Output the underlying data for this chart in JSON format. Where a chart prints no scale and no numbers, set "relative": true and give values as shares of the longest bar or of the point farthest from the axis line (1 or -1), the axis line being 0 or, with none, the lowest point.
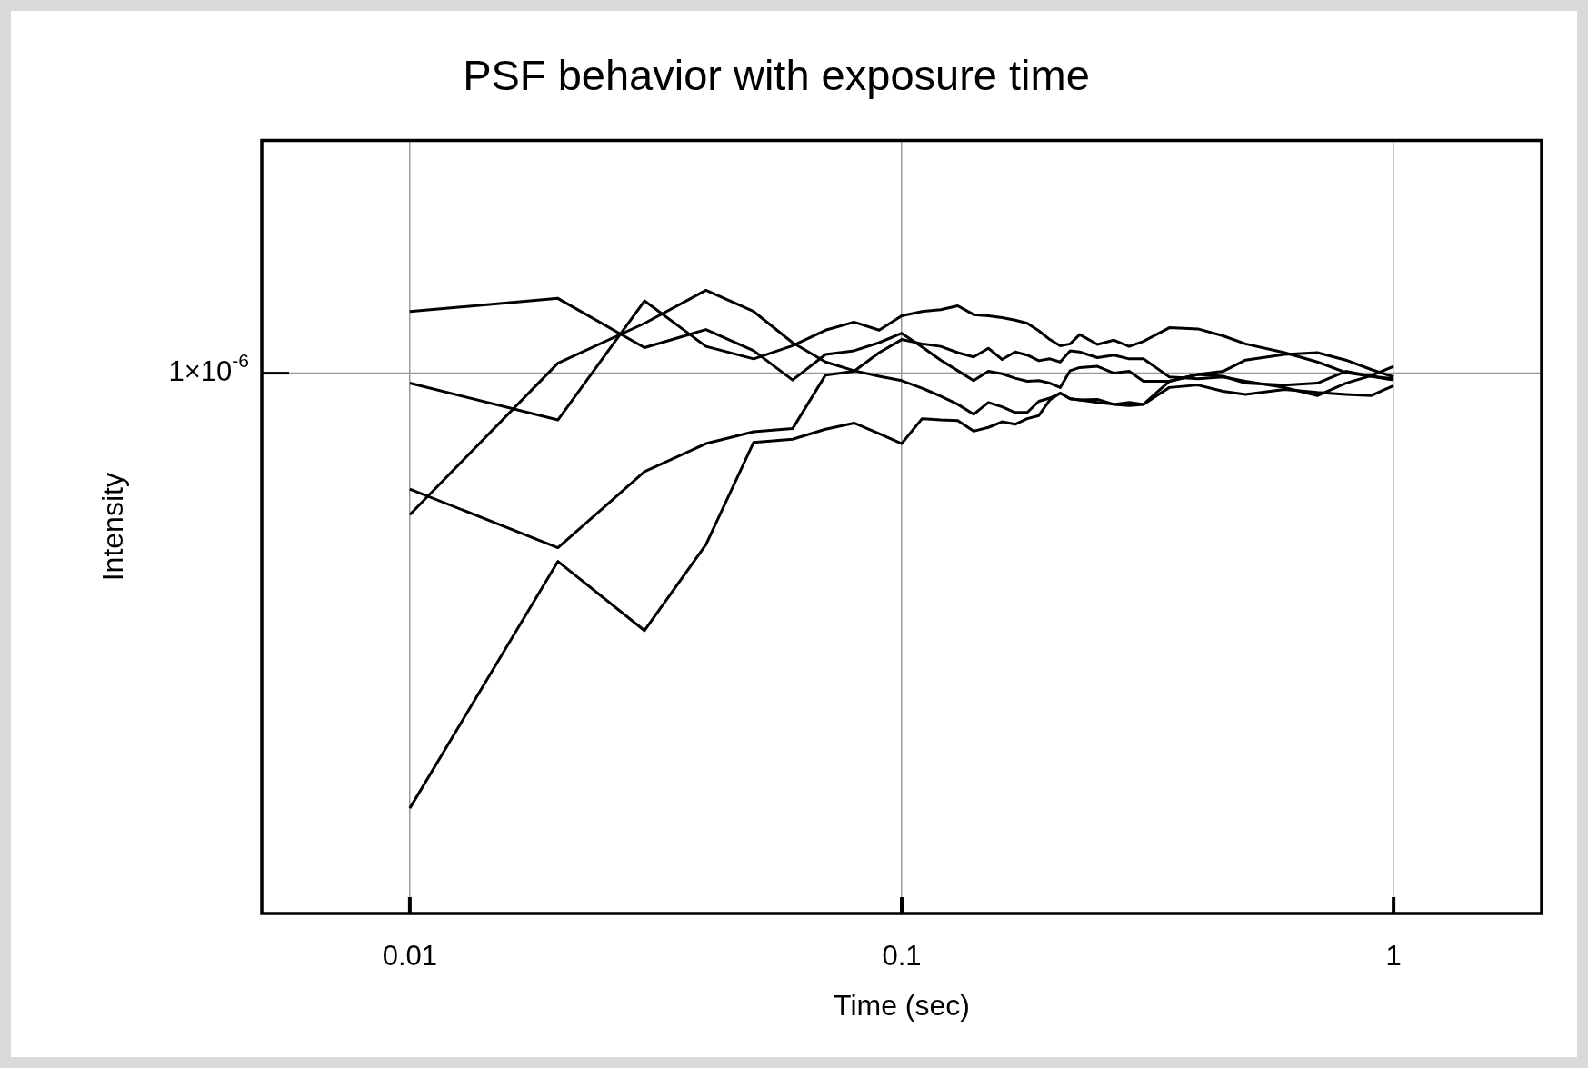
{
  "chart_data": {
    "type": "line",
    "title": "PSF behavior with exposure time",
    "xlabel": "Time (sec)",
    "ylabel": "Intensity",
    "log": "x",
    "grid": "x",
    "legend": false,
    "relative": true,
    "xlim": [
      0.005,
      2
    ],
    "xticks": [
      0.01,
      0.1,
      1
    ],
    "ref_lines": [
      {
        "axis": "y",
        "value": 0.867,
        "label": "1×10$^{-6}$",
        "color": "#999999"
      }
    ],
    "x": [
      0.01,
      0.02,
      0.03,
      0.04,
      0.05,
      0.06,
      0.07,
      0.08,
      0.09,
      0.1,
      0.11,
      0.12,
      0.13,
      0.14,
      0.15,
      0.16,
      0.17,
      0.18,
      0.19,
      0.2,
      0.21,
      0.22,
      0.23,
      0.25,
      0.27,
      0.29,
      0.31,
      0.35,
      0.4,
      0.45,
      0.5,
      0.6,
      0.7,
      0.8,
      0.9,
      1.0
    ],
    "series": [
      {
        "color": "#000000",
        "values": [
          0.966,
          0.987,
          0.908,
          0.937,
          0.903,
          0.856,
          0.897,
          0.903,
          0.916,
          0.931,
          0.909,
          0.888,
          0.871,
          0.855,
          0.87,
          0.866,
          0.859,
          0.854,
          0.855,
          0.851,
          0.844,
          0.871,
          0.876,
          0.878,
          0.867,
          0.87,
          0.854,
          0.854,
          0.865,
          0.862,
          0.851,
          0.848,
          0.851,
          0.87,
          0.862,
          0.856
        ]
      },
      {
        "color": "#000000",
        "values": [
          0.851,
          0.792,
          0.983,
          0.91,
          0.89,
          0.911,
          0.936,
          0.949,
          0.936,
          0.959,
          0.966,
          0.969,
          0.975,
          0.961,
          0.959,
          0.956,
          0.952,
          0.947,
          0.935,
          0.921,
          0.911,
          0.914,
          0.929,
          0.913,
          0.92,
          0.91,
          0.918,
          0.94,
          0.938,
          0.927,
          0.914,
          0.9,
          0.885,
          0.868,
          0.862,
          0.858
        ]
      },
      {
        "color": "#000000",
        "values": [
          0.64,
          0.883,
          0.947,
          1,
          0.966,
          0.916,
          0.885,
          0.871,
          0.862,
          0.855,
          0.843,
          0.83,
          0.817,
          0.801,
          0.82,
          0.813,
          0.804,
          0.804,
          0.822,
          0.827,
          0.835,
          0.826,
          0.824,
          0.825,
          0.817,
          0.815,
          0.817,
          0.844,
          0.848,
          0.838,
          0.833,
          0.841,
          0.836,
          0.833,
          0.831,
          0.847
        ]
      },
      {
        "color": "#000000",
        "values": [
          0.681,
          0.587,
          0.709,
          0.754,
          0.773,
          0.778,
          0.864,
          0.87,
          0.9,
          0.921,
          0.914,
          0.91,
          0.9,
          0.893,
          0.907,
          0.889,
          0.901,
          0.896,
          0.887,
          0.89,
          0.885,
          0.903,
          0.901,
          0.892,
          0.896,
          0.89,
          0.89,
          0.861,
          0.858,
          0.861,
          0.854,
          0.844,
          0.831,
          0.851,
          0.863,
          0.878
        ]
      },
      {
        "color": "#000000",
        "values": [
          0.169,
          0.565,
          0.454,
          0.592,
          0.756,
          0.761,
          0.777,
          0.787,
          0.77,
          0.754,
          0.794,
          0.792,
          0.791,
          0.774,
          0.78,
          0.789,
          0.785,
          0.794,
          0.799,
          0.824,
          0.835,
          0.826,
          0.824,
          0.82,
          0.817,
          0.82,
          0.817,
          0.854,
          0.865,
          0.87,
          0.888,
          0.897,
          0.9,
          0.888,
          0.873,
          0.861
        ]
      }
    ]
  }
}
